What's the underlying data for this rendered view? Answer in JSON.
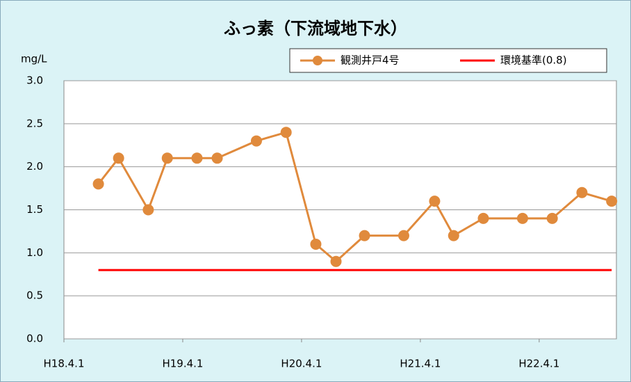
{
  "chart_data": {
    "type": "line",
    "title": "ふっ素（下流域地下水）",
    "y_label": "mg/L",
    "xlim": [
      18.25,
      22.9
    ],
    "xticks": [
      {
        "value": 18.25,
        "label": "H18.4.1"
      },
      {
        "value": 19.25,
        "label": "H19.4.1"
      },
      {
        "value": 20.25,
        "label": "H20.4.1"
      },
      {
        "value": 21.25,
        "label": "H21.4.1"
      },
      {
        "value": 22.25,
        "label": "H22.4.1"
      }
    ],
    "ylim": [
      0,
      3
    ],
    "yticks": [
      {
        "value": 0,
        "label": "0.0"
      },
      0.5,
      {
        "value": 1,
        "label": "1.0"
      },
      1.5,
      {
        "value": 2,
        "label": "2.0"
      },
      2.5,
      {
        "value": 3,
        "label": "3.0"
      }
    ],
    "grid": true,
    "series": [
      {
        "name": "観測井戸4号",
        "color": "#e08a3c",
        "markers": true,
        "x": [
          18.54,
          18.71,
          18.96,
          19.12,
          19.37,
          19.54,
          19.87,
          20.12,
          20.37,
          20.54,
          20.78,
          21.11,
          21.37,
          21.53,
          21.78,
          22.11,
          22.36,
          22.61,
          22.86
        ],
        "values": [
          1.8,
          2.1,
          1.5,
          2.1,
          2.1,
          2.1,
          2.3,
          2.4,
          1.1,
          0.9,
          1.2,
          1.2,
          1.6,
          1.2,
          1.4,
          1.4,
          1.4,
          1.7,
          1.6
        ]
      },
      {
        "name": "環境基準(0.8)",
        "color": "#ff0000",
        "markers": false,
        "x": [
          18.54,
          22.86
        ],
        "values": [
          0.8,
          0.8
        ]
      }
    ]
  }
}
